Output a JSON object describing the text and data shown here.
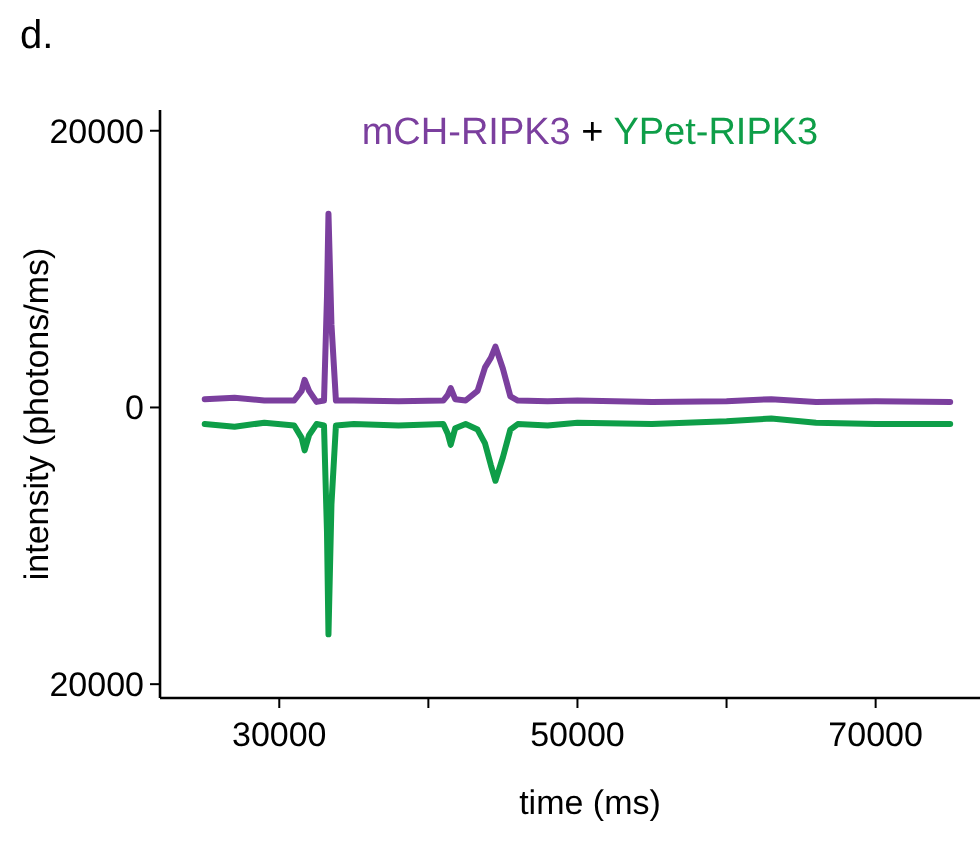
{
  "chart_data": {
    "type": "line",
    "xlabel": "time (ms)",
    "ylabel": "intensity (photons/ms)",
    "legend": "top",
    "annotations": [
      "d.",
      "+"
    ],
    "xlim": [
      22000,
      77000
    ],
    "xticks": [
      30000,
      {
        "value": 40000,
        "label": null
      },
      50000,
      {
        "value": 60000,
        "label": null
      },
      70000
    ],
    "ylim": [
      -21000,
      21500
    ],
    "yticks": [
      {
        "value": -20000,
        "label": "20000"
      },
      0,
      20000
    ],
    "grid": false,
    "line_style": "solid",
    "marker": "none",
    "series": [
      {
        "name": "mCH-RIPK3",
        "color": "#7b3f9e",
        "x": [
          25000,
          27000,
          29000,
          31000,
          31500,
          31700,
          32000,
          32500,
          33000,
          33200,
          33300,
          33500,
          33800,
          35000,
          38000,
          41000,
          41300,
          41500,
          41800,
          42500,
          43300,
          43800,
          44200,
          44500,
          45000,
          45500,
          46000,
          48000,
          50000,
          55000,
          60000,
          63000,
          66000,
          70000,
          75000
        ],
        "values": [
          600,
          700,
          500,
          500,
          1200,
          2000,
          1200,
          400,
          500,
          8000,
          14000,
          6000,
          500,
          500,
          450,
          500,
          900,
          1400,
          600,
          500,
          1200,
          2900,
          3600,
          4400,
          2800,
          800,
          500,
          450,
          500,
          400,
          450,
          600,
          400,
          450,
          400
        ]
      },
      {
        "name": "YPet-RIPK3",
        "color": "#0e9e48",
        "x": [
          25000,
          27000,
          29000,
          31000,
          31500,
          31700,
          32000,
          32500,
          33000,
          33200,
          33300,
          33500,
          33800,
          35000,
          38000,
          41000,
          41300,
          41500,
          41800,
          42500,
          43300,
          43800,
          44200,
          44500,
          45000,
          45500,
          46000,
          48000,
          50000,
          55000,
          60000,
          63000,
          66000,
          70000,
          75000
        ],
        "values": [
          -1200,
          -1400,
          -1100,
          -1300,
          -2200,
          -3100,
          -2000,
          -1200,
          -1300,
          -9000,
          -16400,
          -7000,
          -1300,
          -1200,
          -1300,
          -1200,
          -1900,
          -2700,
          -1500,
          -1200,
          -1600,
          -2600,
          -4200,
          -5300,
          -3600,
          -1600,
          -1200,
          -1300,
          -1100,
          -1200,
          -1000,
          -800,
          -1100,
          -1200,
          -1200
        ]
      }
    ]
  }
}
